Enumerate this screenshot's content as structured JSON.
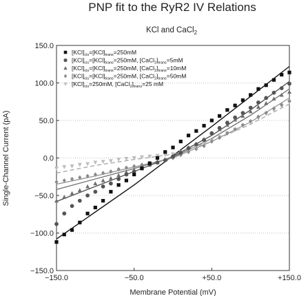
{
  "chart_data": {
    "type": "scatter",
    "title": "PNP fit to the RyR2 IV Relations",
    "subtitle": "KCl and CaCl",
    "subtitle_sub": "2",
    "xlabel": "Membrane Potential (mV)",
    "ylabel": "Single-Channel Current (pA)",
    "xlim": [
      -150,
      150
    ],
    "ylim": [
      -150,
      150
    ],
    "xticks": [
      -150,
      -50,
      50,
      150
    ],
    "xtick_labels": [
      "−150.0",
      "−50.0",
      "+50.0",
      "+150.0"
    ],
    "yticks": [
      -150,
      -100,
      -50,
      0,
      50,
      100,
      150
    ],
    "ytick_labels": [
      "−150.0",
      "−100.0",
      "−50.0",
      "0.0",
      "50.0",
      "100.0",
      "150.0"
    ],
    "grid": "horizontal dotted",
    "legend_position": "top-left",
    "series": [
      {
        "marker": "square",
        "color": "#111111",
        "fit_color": "#111111",
        "fit_dash": "",
        "legend": [
          [
            "[KCl]",
            ""
          ],
          [
            "cis",
            "sub"
          ],
          [
            "=[KCl]",
            ""
          ],
          [
            "trans",
            "sub"
          ],
          [
            "=250mM",
            ""
          ]
        ],
        "points": [
          [
            -150,
            -112
          ],
          [
            -140,
            -102
          ],
          [
            -130,
            -96
          ],
          [
            -120,
            -86
          ],
          [
            -110,
            -74
          ],
          [
            -100,
            -66
          ],
          [
            -90,
            -57
          ],
          [
            -80,
            -45
          ],
          [
            -70,
            -36
          ],
          [
            -60,
            -30
          ],
          [
            -50,
            -22
          ],
          [
            -40,
            -14
          ],
          [
            -30,
            -7
          ],
          [
            -20,
            0
          ],
          [
            -10,
            8
          ],
          [
            0,
            14
          ],
          [
            10,
            22
          ],
          [
            20,
            30
          ],
          [
            30,
            36
          ],
          [
            40,
            43
          ],
          [
            50,
            50
          ],
          [
            60,
            56
          ],
          [
            70,
            64
          ],
          [
            80,
            70
          ],
          [
            90,
            77
          ],
          [
            100,
            84
          ],
          [
            110,
            92
          ],
          [
            120,
            97
          ],
          [
            130,
            104
          ],
          [
            140,
            111
          ],
          [
            150,
            114
          ]
        ],
        "fit": [
          [
            -150,
            -108
          ],
          [
            -100,
            -72
          ],
          [
            -50,
            -36
          ],
          [
            0,
            3
          ],
          [
            50,
            42
          ],
          [
            100,
            82
          ],
          [
            150,
            122
          ]
        ]
      },
      {
        "marker": "circle",
        "color": "#555555",
        "fit_color": "#555555",
        "fit_dash": "",
        "legend": [
          [
            "[KCl]",
            ""
          ],
          [
            "cis",
            "sub"
          ],
          [
            "=[KCl]",
            ""
          ],
          [
            "trans",
            "sub"
          ],
          [
            "=250mM, [CaCl",
            ""
          ],
          [
            "2",
            "sub"
          ],
          [
            "]",
            ""
          ],
          [
            "trans",
            "sub"
          ],
          [
            "=5mM",
            ""
          ]
        ],
        "points": [
          [
            -150,
            -88
          ],
          [
            -140,
            -74
          ],
          [
            -130,
            -64
          ],
          [
            -120,
            -57
          ],
          [
            -110,
            -50
          ],
          [
            -100,
            -45
          ],
          [
            -90,
            -38
          ],
          [
            -80,
            -34
          ],
          [
            -70,
            -28
          ],
          [
            -60,
            -22
          ],
          [
            -50,
            -18
          ],
          [
            -40,
            -13
          ],
          [
            -30,
            -9
          ],
          [
            -20,
            -6
          ],
          [
            -10,
            -3
          ],
          [
            0,
            2
          ],
          [
            10,
            7
          ],
          [
            20,
            13
          ],
          [
            30,
            18
          ],
          [
            40,
            24
          ],
          [
            50,
            33
          ],
          [
            60,
            40
          ],
          [
            70,
            47
          ],
          [
            80,
            54
          ],
          [
            90,
            60
          ],
          [
            100,
            67
          ],
          [
            110,
            74
          ],
          [
            120,
            80
          ],
          [
            130,
            87
          ],
          [
            140,
            93
          ],
          [
            150,
            99
          ]
        ],
        "fit": [
          [
            -150,
            -58
          ],
          [
            -100,
            -38
          ],
          [
            -50,
            -18
          ],
          [
            0,
            2
          ],
          [
            50,
            30
          ],
          [
            100,
            64
          ],
          [
            150,
            102
          ]
        ]
      },
      {
        "marker": "triangle",
        "color": "#6f6f6f",
        "fit_color": "#777777",
        "fit_dash": "",
        "legend": [
          [
            "[KCl]",
            ""
          ],
          [
            "cis",
            "sub"
          ],
          [
            "=[KCl]",
            ""
          ],
          [
            "trans",
            "sub"
          ],
          [
            "=250mM, [CaCl",
            ""
          ],
          [
            "2",
            "sub"
          ],
          [
            "]",
            ""
          ],
          [
            "trans",
            "sub"
          ],
          [
            "=10mM",
            ""
          ]
        ],
        "points": [
          [
            -150,
            -57
          ],
          [
            -140,
            -52
          ],
          [
            -130,
            -47
          ],
          [
            -120,
            -43
          ],
          [
            -110,
            -38
          ],
          [
            -100,
            -34
          ],
          [
            -90,
            -30
          ],
          [
            -80,
            -27
          ],
          [
            -70,
            -23
          ],
          [
            -60,
            -19
          ],
          [
            -50,
            -16
          ],
          [
            -40,
            -13
          ],
          [
            -30,
            -9
          ],
          [
            -20,
            -6
          ],
          [
            -10,
            -2
          ],
          [
            0,
            2
          ],
          [
            10,
            8
          ],
          [
            20,
            14
          ],
          [
            30,
            19
          ],
          [
            40,
            25
          ],
          [
            50,
            33
          ],
          [
            60,
            38
          ],
          [
            70,
            44
          ],
          [
            80,
            51
          ],
          [
            90,
            56
          ],
          [
            100,
            62
          ],
          [
            110,
            68
          ],
          [
            120,
            73
          ],
          [
            130,
            79
          ],
          [
            140,
            84
          ],
          [
            150,
            88
          ]
        ],
        "fit": [
          [
            -150,
            -42
          ],
          [
            -100,
            -28
          ],
          [
            -50,
            -14
          ],
          [
            0,
            1
          ],
          [
            50,
            26
          ],
          [
            100,
            57
          ],
          [
            150,
            92
          ]
        ]
      },
      {
        "marker": "diamond",
        "color": "#8a8a8a",
        "fit_color": "#999999",
        "fit_dash": "",
        "legend": [
          [
            "[KCl]",
            ""
          ],
          [
            "cis",
            "sub"
          ],
          [
            "=[KCl]",
            ""
          ],
          [
            "trans",
            "sub"
          ],
          [
            "=250mM, [CaCl",
            ""
          ],
          [
            "2",
            "sub"
          ],
          [
            "]",
            ""
          ],
          [
            "trans",
            "sub"
          ],
          [
            "=50mM",
            ""
          ]
        ],
        "points": [
          [
            -150,
            -32
          ],
          [
            -140,
            -30
          ],
          [
            -130,
            -28
          ],
          [
            -120,
            -26
          ],
          [
            -110,
            -24
          ],
          [
            -100,
            -22
          ],
          [
            -90,
            -20
          ],
          [
            -80,
            -18
          ],
          [
            -70,
            -15
          ],
          [
            -60,
            -13
          ],
          [
            -50,
            -11
          ],
          [
            -40,
            -9
          ],
          [
            -30,
            -7
          ],
          [
            -20,
            -5
          ],
          [
            -10,
            -3
          ],
          [
            0,
            0
          ],
          [
            10,
            4
          ],
          [
            20,
            8
          ],
          [
            30,
            12
          ],
          [
            40,
            16
          ],
          [
            50,
            22
          ],
          [
            60,
            27
          ],
          [
            70,
            33
          ],
          [
            80,
            38
          ],
          [
            90,
            44
          ],
          [
            100,
            49
          ],
          [
            110,
            55
          ],
          [
            120,
            60
          ],
          [
            130,
            66
          ],
          [
            140,
            71
          ],
          [
            150,
            76
          ]
        ],
        "fit": [
          [
            -150,
            -35
          ],
          [
            -100,
            -24
          ],
          [
            -50,
            -12
          ],
          [
            0,
            0
          ],
          [
            50,
            22
          ],
          [
            100,
            48
          ],
          [
            150,
            80
          ]
        ]
      },
      {
        "marker": "triangle-down",
        "color": "#bdbdbd",
        "fit_color": "#aaaaaa",
        "fit_dash": "6,4",
        "legend": [
          [
            "[KCl]",
            ""
          ],
          [
            "cis",
            "sub"
          ],
          [
            "=250mM, [CaCl",
            ""
          ],
          [
            "2",
            "sub"
          ],
          [
            "]",
            ""
          ],
          [
            "trans",
            "sub"
          ],
          [
            "=25 mM",
            ""
          ]
        ],
        "points": [
          [
            -150,
            -14
          ],
          [
            -140,
            -12
          ],
          [
            -130,
            -11
          ],
          [
            -120,
            -9
          ],
          [
            -110,
            -8
          ],
          [
            -100,
            -6
          ],
          [
            -90,
            -5
          ],
          [
            -80,
            -4
          ],
          [
            -70,
            -2
          ],
          [
            -60,
            -1
          ],
          [
            -50,
            0
          ],
          [
            -40,
            1
          ],
          [
            -30,
            2
          ],
          [
            -20,
            3
          ],
          [
            -10,
            4
          ],
          [
            0,
            5
          ],
          [
            10,
            8
          ],
          [
            20,
            11
          ],
          [
            30,
            15
          ],
          [
            40,
            19
          ],
          [
            50,
            23
          ],
          [
            60,
            28
          ],
          [
            70,
            33
          ],
          [
            80,
            38
          ],
          [
            90,
            43
          ],
          [
            100,
            48
          ],
          [
            110,
            53
          ],
          [
            120,
            59
          ],
          [
            130,
            64
          ],
          [
            140,
            69
          ],
          [
            150,
            74
          ]
        ],
        "fit": [
          [
            -150,
            -20
          ],
          [
            -100,
            -10
          ],
          [
            -50,
            -2
          ],
          [
            0,
            5
          ],
          [
            50,
            22
          ],
          [
            100,
            45
          ],
          [
            150,
            72
          ]
        ]
      }
    ]
  }
}
